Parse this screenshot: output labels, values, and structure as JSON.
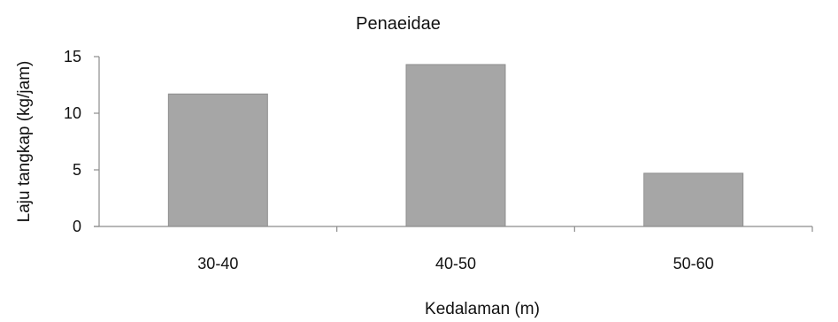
{
  "chart_data": {
    "type": "bar",
    "title": "Penaeidae",
    "xlabel": "Kedalaman (m)",
    "ylabel": "Laju tangkap (kg/jam)",
    "categories": [
      "30-40",
      "40-50",
      "50-60"
    ],
    "values": [
      11.7,
      14.3,
      4.7
    ],
    "ylim": [
      0,
      15
    ],
    "yticks": [
      "0",
      "5",
      "10",
      "15"
    ],
    "grid": false,
    "legend": "none",
    "colors": {
      "bar": "#a6a6a6",
      "bar_edge": "#8f8f8f",
      "axis": "#8c8c8c",
      "text": "#111111"
    }
  }
}
